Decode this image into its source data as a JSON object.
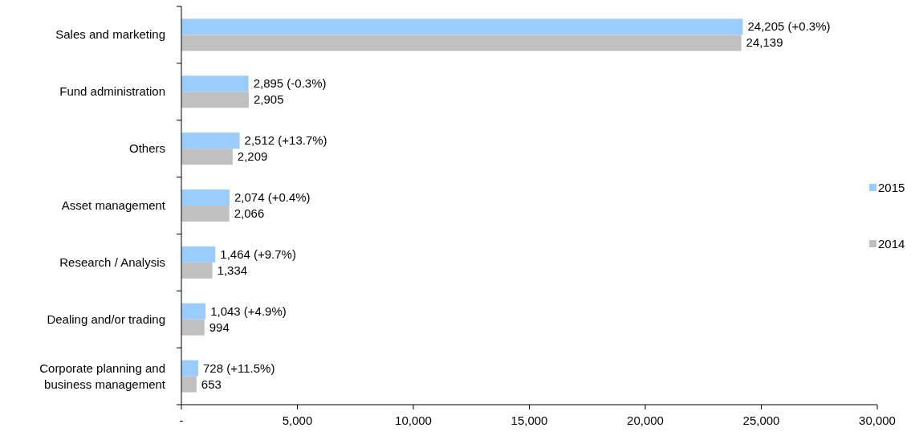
{
  "chart_data": {
    "type": "bar",
    "orientation": "horizontal",
    "categories": [
      "Sales and marketing",
      "Fund administration",
      "Others",
      "Asset management",
      "Research / Analysis",
      "Dealing and/or trading",
      "Corporate planning and business management"
    ],
    "series": [
      {
        "name": "2015",
        "color": "#99ccff",
        "values": [
          24205,
          2895,
          2512,
          2074,
          1464,
          1043,
          728
        ],
        "value_labels": [
          "24,205 (+0.3%)",
          "2,895 (-0.3%)",
          "2,512 (+13.7%)",
          "2,074 (+0.4%)",
          "1,464 (+9.7%)",
          "1,043 (+4.9%)",
          "728 (+11.5%)"
        ]
      },
      {
        "name": "2014",
        "color": "#c0c0c0",
        "values": [
          24139,
          2905,
          2209,
          2066,
          1334,
          994,
          653
        ],
        "value_labels": [
          "24,139",
          "2,905",
          "2,209",
          "2,066",
          "1,334",
          "994",
          "653"
        ]
      }
    ],
    "xlim": [
      0,
      30000
    ],
    "xticks": [
      {
        "value": 0,
        "label": "-"
      },
      {
        "value": 5000,
        "label": "5,000"
      },
      {
        "value": 10000,
        "label": "10,000"
      },
      {
        "value": 15000,
        "label": "15,000"
      },
      {
        "value": 20000,
        "label": "20,000"
      },
      {
        "value": 25000,
        "label": "25,000"
      },
      {
        "value": 30000,
        "label": "30,000"
      }
    ],
    "legend": "right"
  }
}
